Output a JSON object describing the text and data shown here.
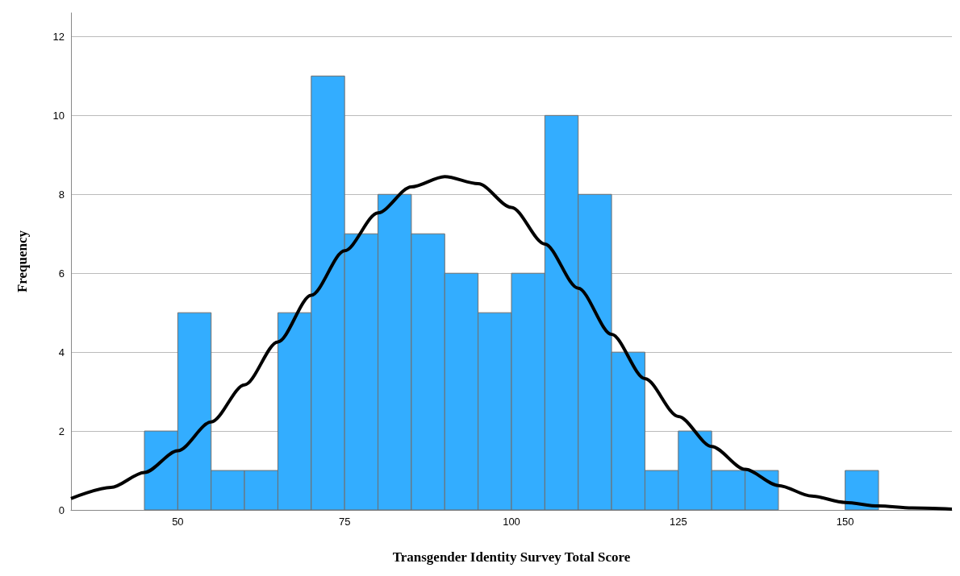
{
  "chart_data": {
    "type": "histogram",
    "xlabel": "Transgender Identity Survey Total Score",
    "ylabel": "Frequency",
    "bins": [
      45,
      50,
      55,
      60,
      65,
      70,
      75,
      80,
      85,
      90,
      95,
      100,
      105,
      110,
      115,
      120,
      125,
      130,
      135,
      140,
      145,
      150,
      155
    ],
    "values": [
      2,
      5,
      1,
      1,
      5,
      11,
      7,
      8,
      7,
      6,
      5,
      6,
      10,
      8,
      4,
      1,
      2,
      1,
      1,
      0,
      0,
      1
    ],
    "color": "#33adff",
    "series": [
      {
        "type": "line",
        "color": "#000000",
        "x": [
          34,
          40,
          45,
          50,
          55,
          60,
          65,
          70,
          75,
          80,
          85,
          90,
          95,
          100,
          105,
          110,
          115,
          120,
          125,
          130,
          135,
          140,
          145,
          150,
          155,
          160,
          166
        ],
        "values": [
          0.29,
          0.57,
          0.95,
          1.5,
          2.23,
          3.17,
          4.26,
          5.44,
          6.57,
          7.53,
          8.19,
          8.45,
          8.27,
          7.67,
          6.74,
          5.62,
          4.45,
          3.33,
          2.37,
          1.61,
          1.03,
          0.62,
          0.35,
          0.19,
          0.1,
          0.05,
          0.02
        ]
      }
    ],
    "xlim": [
      34,
      166
    ],
    "xticks": [
      50,
      75,
      100,
      125,
      150
    ],
    "ylim": [
      0,
      12.6
    ],
    "yticks": [
      0,
      2,
      4,
      6,
      8,
      10,
      12
    ],
    "grid": "y",
    "marker": "none",
    "line_style": "solid"
  }
}
